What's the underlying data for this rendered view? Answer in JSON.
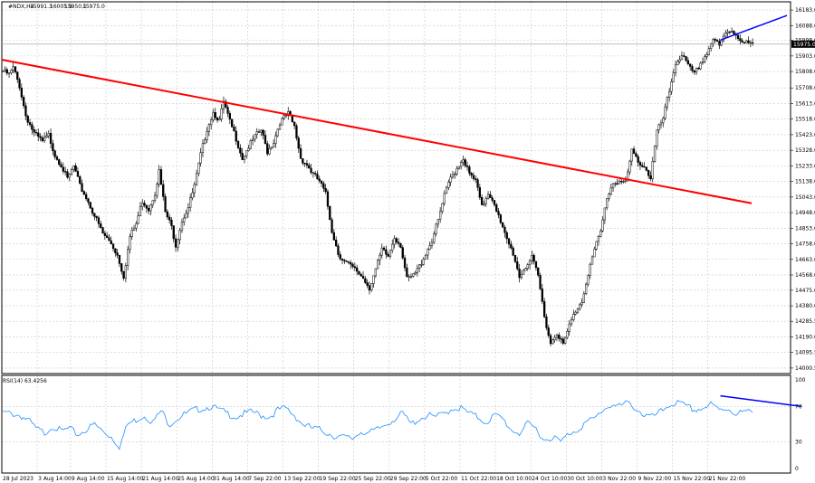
{
  "chart_data": [
    {
      "type": "candlestick",
      "title": "#NDX,H4",
      "ohlc_header": {
        "open": "15991.3",
        "high": "16005.9",
        "low": "15950.1",
        "close": "15975.0"
      },
      "current_price_label": "15975.0",
      "ylim": [
        14000,
        16200
      ],
      "y_tick_labels": [
        "16183.0",
        "16088.0",
        "15998.0",
        "15903.0",
        "15808.0",
        "15708.0",
        "15613.0",
        "15518.0",
        "15423.0",
        "15328.0",
        "15233.0",
        "15138.0",
        "15043.0",
        "14948.0",
        "14853.0",
        "14758.0",
        "14663.0",
        "14568.0",
        "14475.0",
        "14380.0",
        "14285.5",
        "14190.0",
        "14095.5",
        "14000.5"
      ],
      "x_tick_labels": [
        "28 Jul 2023",
        "3 Aug 14:00",
        "9 Aug 14:00",
        "15 Aug 14:00",
        "21 Aug 14:00",
        "25 Aug 14:00",
        "31 Aug 14:00",
        "7 Sep 22:00",
        "13 Sep 22:00",
        "19 Sep 22:00",
        "25 Sep 22:00",
        "29 Sep 22:00",
        "5 Oct 22:00",
        "11 Oct 22:00",
        "18 Oct 10:00",
        "24 Oct 10:00",
        "30 Oct 10:00",
        "3 Nov 22:00",
        "9 Nov 22:00",
        "15 Nov 22:00",
        "21 Nov 22:00"
      ],
      "x_tick_bar_index": [
        0,
        17,
        33,
        50,
        67,
        84,
        101,
        118,
        135,
        152,
        169,
        186,
        203,
        220,
        237,
        254,
        271,
        288,
        305,
        322,
        339
      ],
      "grid": true,
      "price_path_close_by_bar": [
        [
          0,
          15810
        ],
        [
          3,
          15790
        ],
        [
          5,
          15830
        ],
        [
          8,
          15720
        ],
        [
          11,
          15540
        ],
        [
          15,
          15430
        ],
        [
          19,
          15380
        ],
        [
          22,
          15420
        ],
        [
          25,
          15300
        ],
        [
          28,
          15240
        ],
        [
          31,
          15150
        ],
        [
          34,
          15230
        ],
        [
          37,
          15110
        ],
        [
          40,
          15040
        ],
        [
          44,
          14930
        ],
        [
          48,
          14820
        ],
        [
          52,
          14760
        ],
        [
          55,
          14690
        ],
        [
          58,
          14560
        ],
        [
          61,
          14800
        ],
        [
          64,
          14880
        ],
        [
          67,
          15020
        ],
        [
          70,
          14970
        ],
        [
          73,
          15070
        ],
        [
          75,
          15200
        ],
        [
          78,
          14950
        ],
        [
          81,
          14860
        ],
        [
          83,
          14750
        ],
        [
          86,
          14900
        ],
        [
          89,
          14980
        ],
        [
          92,
          15110
        ],
        [
          95,
          15300
        ],
        [
          98,
          15460
        ],
        [
          101,
          15560
        ],
        [
          104,
          15510
        ],
        [
          106,
          15620
        ],
        [
          109,
          15500
        ],
        [
          112,
          15400
        ],
        [
          115,
          15280
        ],
        [
          118,
          15350
        ],
        [
          121,
          15410
        ],
        [
          124,
          15450
        ],
        [
          127,
          15320
        ],
        [
          130,
          15380
        ],
        [
          133,
          15500
        ],
        [
          137,
          15550
        ],
        [
          140,
          15470
        ],
        [
          143,
          15280
        ],
        [
          146,
          15240
        ],
        [
          149,
          15180
        ],
        [
          152,
          15140
        ],
        [
          155,
          15060
        ],
        [
          158,
          14840
        ],
        [
          161,
          14700
        ],
        [
          164,
          14650
        ],
        [
          167,
          14620
        ],
        [
          170,
          14590
        ],
        [
          173,
          14550
        ],
        [
          176,
          14490
        ],
        [
          179,
          14600
        ],
        [
          182,
          14720
        ],
        [
          185,
          14680
        ],
        [
          188,
          14800
        ],
        [
          191,
          14750
        ],
        [
          194,
          14540
        ],
        [
          197,
          14560
        ],
        [
          200,
          14620
        ],
        [
          203,
          14700
        ],
        [
          206,
          14780
        ],
        [
          209,
          14900
        ],
        [
          212,
          15050
        ],
        [
          215,
          15160
        ],
        [
          218,
          15220
        ],
        [
          221,
          15280
        ],
        [
          224,
          15180
        ],
        [
          227,
          15140
        ],
        [
          230,
          14980
        ],
        [
          233,
          15070
        ],
        [
          236,
          15010
        ],
        [
          239,
          14880
        ],
        [
          242,
          14780
        ],
        [
          245,
          14700
        ],
        [
          248,
          14560
        ],
        [
          251,
          14620
        ],
        [
          254,
          14670
        ],
        [
          257,
          14560
        ],
        [
          260,
          14320
        ],
        [
          263,
          14150
        ],
        [
          266,
          14220
        ],
        [
          269,
          14140
        ],
        [
          272,
          14260
        ],
        [
          275,
          14350
        ],
        [
          278,
          14410
        ],
        [
          281,
          14580
        ],
        [
          284,
          14720
        ],
        [
          287,
          14830
        ],
        [
          290,
          15040
        ],
        [
          293,
          15130
        ],
        [
          296,
          15140
        ],
        [
          299,
          15130
        ],
        [
          302,
          15320
        ],
        [
          305,
          15260
        ],
        [
          308,
          15230
        ],
        [
          311,
          15160
        ],
        [
          314,
          15440
        ],
        [
          317,
          15520
        ],
        [
          320,
          15690
        ],
        [
          323,
          15860
        ],
        [
          326,
          15910
        ],
        [
          329,
          15840
        ],
        [
          332,
          15790
        ],
        [
          335,
          15860
        ],
        [
          338,
          15920
        ],
        [
          341,
          16010
        ],
        [
          344,
          15960
        ],
        [
          347,
          16040
        ],
        [
          350,
          16060
        ],
        [
          353,
          16020
        ],
        [
          356,
          15985
        ],
        [
          360,
          15975
        ]
      ],
      "red_trendline": {
        "from": [
          0,
          15880
        ],
        "to": [
          360,
          15005
        ]
      },
      "blue_price_line": {
        "from": [
          345,
          16000
        ],
        "to": [
          377,
          16150
        ]
      }
    },
    {
      "type": "line",
      "title": "RSI(14) 63.4256",
      "ylim": [
        0,
        100
      ],
      "y_tick_labels": [
        "100",
        "70",
        "30",
        "0"
      ],
      "series_by_bar": [
        [
          0,
          63
        ],
        [
          4,
          62
        ],
        [
          8,
          60
        ],
        [
          12,
          55
        ],
        [
          16,
          45
        ],
        [
          20,
          40
        ],
        [
          24,
          48
        ],
        [
          28,
          42
        ],
        [
          32,
          45
        ],
        [
          36,
          38
        ],
        [
          40,
          44
        ],
        [
          44,
          50
        ],
        [
          48,
          42
        ],
        [
          52,
          36
        ],
        [
          56,
          25
        ],
        [
          60,
          50
        ],
        [
          64,
          55
        ],
        [
          68,
          60
        ],
        [
          72,
          52
        ],
        [
          76,
          65
        ],
        [
          80,
          50
        ],
        [
          84,
          57
        ],
        [
          88,
          62
        ],
        [
          92,
          66
        ],
        [
          96,
          68
        ],
        [
          100,
          70
        ],
        [
          104,
          66
        ],
        [
          108,
          62
        ],
        [
          112,
          58
        ],
        [
          116,
          62
        ],
        [
          120,
          64
        ],
        [
          124,
          60
        ],
        [
          128,
          58
        ],
        [
          132,
          66
        ],
        [
          136,
          68
        ],
        [
          140,
          60
        ],
        [
          144,
          50
        ],
        [
          148,
          46
        ],
        [
          152,
          44
        ],
        [
          156,
          40
        ],
        [
          160,
          36
        ],
        [
          164,
          35
        ],
        [
          168,
          34
        ],
        [
          172,
          42
        ],
        [
          176,
          40
        ],
        [
          180,
          44
        ],
        [
          184,
          50
        ],
        [
          188,
          56
        ],
        [
          192,
          62
        ],
        [
          196,
          50
        ],
        [
          200,
          56
        ],
        [
          204,
          60
        ],
        [
          208,
          58
        ],
        [
          212,
          62
        ],
        [
          216,
          68
        ],
        [
          220,
          68
        ],
        [
          224,
          62
        ],
        [
          228,
          58
        ],
        [
          232,
          52
        ],
        [
          236,
          60
        ],
        [
          240,
          56
        ],
        [
          244,
          44
        ],
        [
          248,
          40
        ],
        [
          252,
          50
        ],
        [
          256,
          45
        ],
        [
          260,
          32
        ],
        [
          264,
          36
        ],
        [
          268,
          30
        ],
        [
          272,
          40
        ],
        [
          276,
          44
        ],
        [
          280,
          52
        ],
        [
          284,
          56
        ],
        [
          288,
          66
        ],
        [
          292,
          72
        ],
        [
          296,
          70
        ],
        [
          300,
          74
        ],
        [
          304,
          68
        ],
        [
          308,
          60
        ],
        [
          312,
          58
        ],
        [
          316,
          64
        ],
        [
          320,
          72
        ],
        [
          324,
          74
        ],
        [
          328,
          70
        ],
        [
          332,
          66
        ],
        [
          336,
          68
        ],
        [
          340,
          72
        ],
        [
          344,
          66
        ],
        [
          348,
          68
        ],
        [
          352,
          62
        ],
        [
          356,
          64
        ],
        [
          360,
          63
        ]
      ],
      "blue_divergence_line": {
        "from": [
          345,
          82
        ],
        "to": [
          384,
          70
        ]
      }
    }
  ]
}
